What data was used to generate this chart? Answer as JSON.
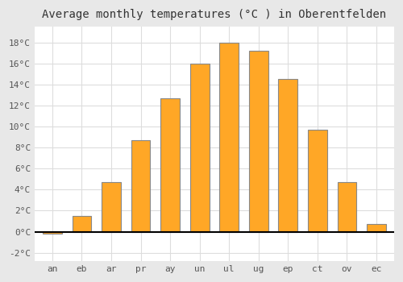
{
  "title": "Average monthly temperatures (°C ) in Oberentfelden",
  "months": [
    "an",
    "eb",
    "ar",
    "pr",
    "ay",
    "un",
    "ul",
    "ug",
    "ep",
    "ct",
    "ov",
    "ec"
  ],
  "values": [
    -0.2,
    1.5,
    4.7,
    8.7,
    12.7,
    16.0,
    18.0,
    17.2,
    14.5,
    9.7,
    4.7,
    0.7
  ],
  "bar_color": "#FFA726",
  "bar_edge_color": "#888888",
  "ylim": [
    -2.8,
    19.5
  ],
  "yticks": [
    -2,
    0,
    2,
    4,
    6,
    8,
    10,
    12,
    14,
    16,
    18
  ],
  "background_color": "#ffffff",
  "outer_background": "#e8e8e8",
  "grid_color": "#dddddd",
  "zero_line_color": "#000000",
  "title_fontsize": 10,
  "tick_fontsize": 8,
  "font_family": "monospace"
}
